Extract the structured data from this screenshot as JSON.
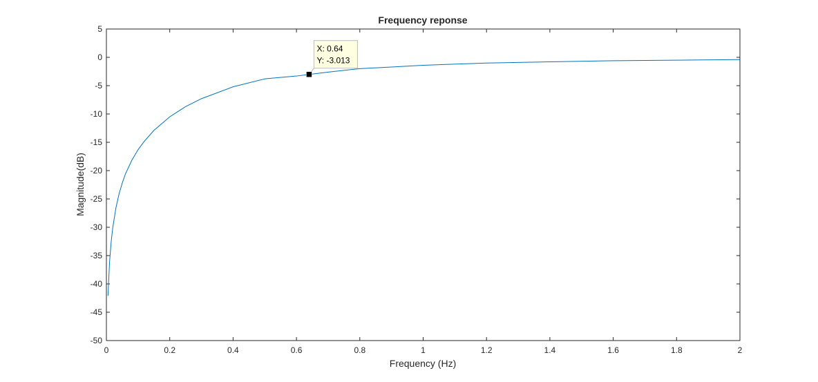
{
  "chart_data": {
    "type": "line",
    "title": "Frequency reponse",
    "xlabel": "Frequency (Hz)",
    "ylabel": "Magnitude(dB)",
    "xlim": [
      0,
      2
    ],
    "ylim": [
      -50,
      5
    ],
    "xticks": [
      0,
      0.2,
      0.4,
      0.6,
      0.8,
      1,
      1.2,
      1.4,
      1.6,
      1.8,
      2
    ],
    "xtick_labels": [
      "0",
      "0.2",
      "0.4",
      "0.6",
      "0.8",
      "1",
      "1.2",
      "1.4",
      "1.6",
      "1.8",
      "2"
    ],
    "yticks": [
      5,
      0,
      -5,
      -10,
      -15,
      -20,
      -25,
      -30,
      -35,
      -40,
      -45,
      -50
    ],
    "ytick_labels": [
      "5",
      "0",
      "-5",
      "-10",
      "-15",
      "-20",
      "-25",
      "-30",
      "-35",
      "-40",
      "-45",
      "-50"
    ],
    "grid": false,
    "box": true,
    "series": [
      {
        "color": "#0072bd",
        "x": [
          0.005,
          0.01,
          0.015,
          0.02,
          0.03,
          0.04,
          0.05,
          0.06,
          0.08,
          0.1,
          0.12,
          0.15,
          0.2,
          0.25,
          0.3,
          0.4,
          0.5,
          0.6,
          0.64,
          0.7,
          0.8,
          0.9,
          1.0,
          1.2,
          1.4,
          1.6,
          1.8,
          2.0
        ],
        "y": [
          -42.1,
          -36.1,
          -32.6,
          -30.1,
          -26.6,
          -24.1,
          -22.2,
          -20.6,
          -18.2,
          -16.3,
          -14.8,
          -12.9,
          -10.5,
          -8.7,
          -7.3,
          -5.2,
          -3.8,
          -3.3,
          -3.013,
          -2.6,
          -2.0,
          -1.7,
          -1.4,
          -1.0,
          -0.8,
          -0.6,
          -0.5,
          -0.4
        ]
      }
    ],
    "datatip": {
      "x": 0.64,
      "y": -3.013,
      "x_text": "X: 0.64",
      "y_text": "Y: -3.013"
    }
  }
}
